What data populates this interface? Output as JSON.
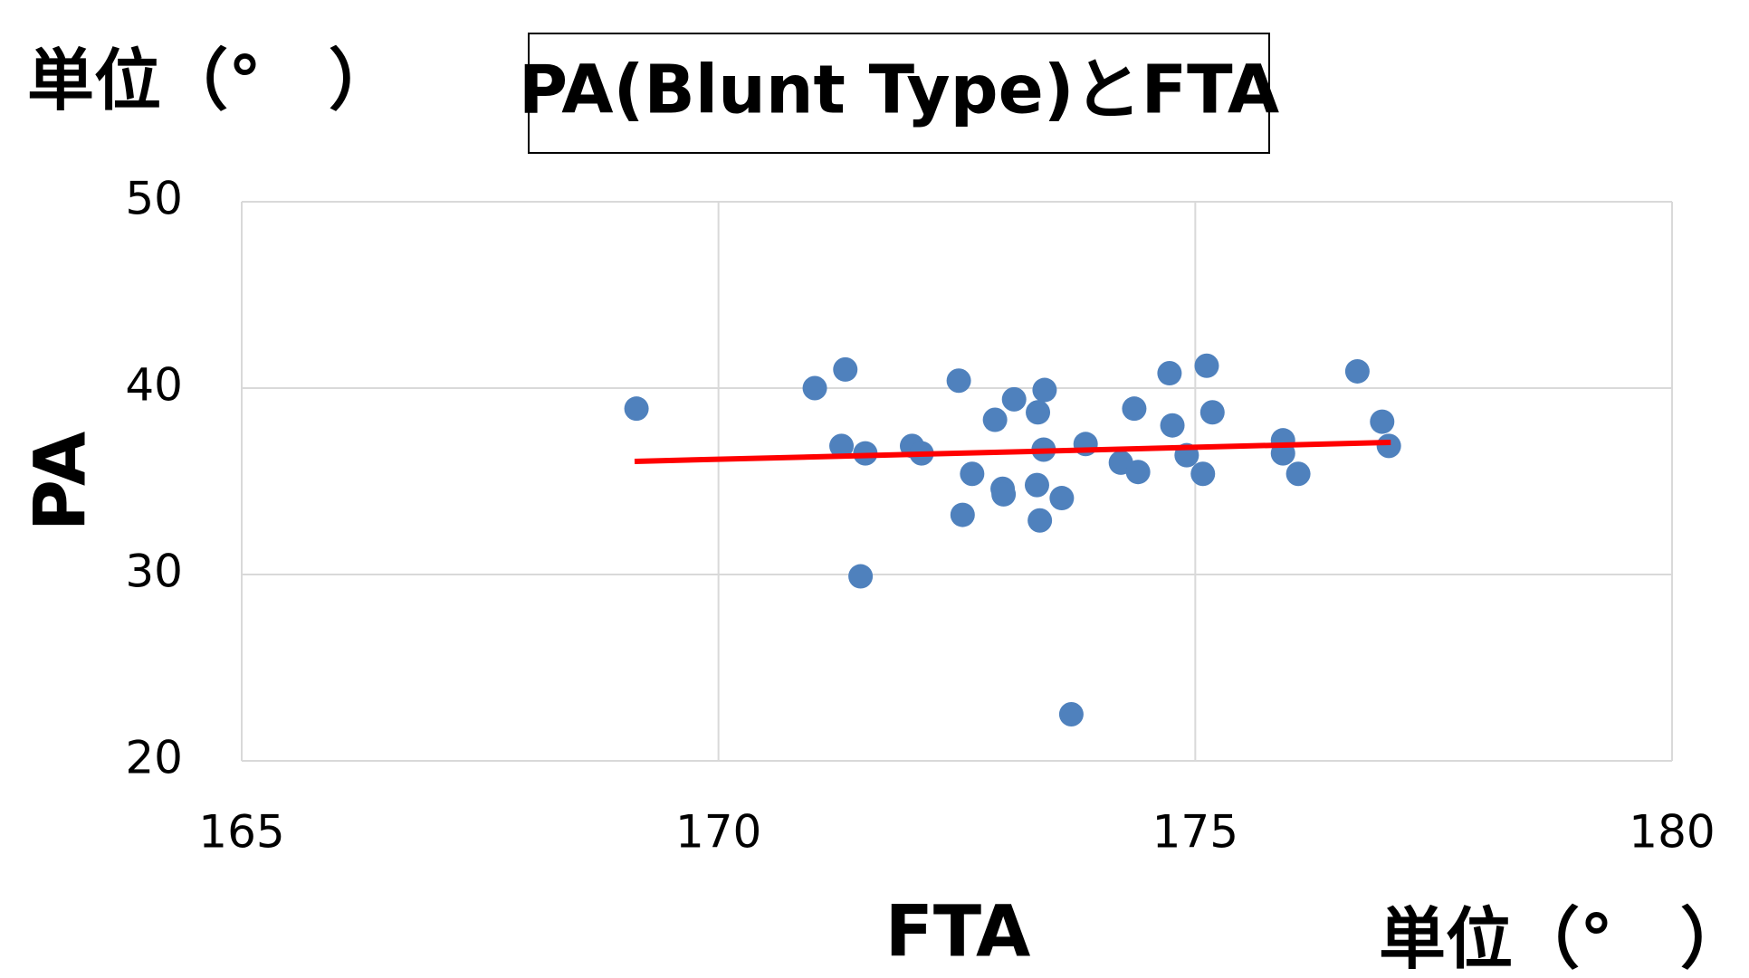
{
  "chart_data": {
    "type": "scatter",
    "title": "PA(Blunt Type)とFTA",
    "y_unit": "単位（°　）",
    "x_unit": "単位（°　）",
    "x_label": "FTA",
    "y_label": "PA",
    "xlim": [
      165,
      180
    ],
    "xticks": [
      165,
      170,
      175,
      180
    ],
    "ylim": [
      20,
      50
    ],
    "yticks": [
      20,
      30,
      40,
      50
    ],
    "grid": true,
    "series": [
      {
        "color": "#4f81bd",
        "x": [
          169.14,
          171.01,
          171.33,
          171.29,
          171.54,
          171.49,
          172.03,
          172.13,
          172.52,
          172.56,
          172.66,
          172.9,
          172.98,
          172.99,
          173.1,
          173.34,
          173.35,
          173.37,
          173.41,
          173.42,
          173.6,
          173.7,
          173.85,
          174.22,
          174.36,
          174.4,
          174.73,
          174.76,
          174.91,
          175.08,
          175.12,
          175.18,
          175.92,
          175.92,
          176.08,
          176.7,
          176.96,
          177.03
        ],
        "values": [
          38.9,
          40.0,
          41.0,
          36.9,
          36.5,
          29.9,
          36.9,
          36.5,
          40.4,
          33.2,
          35.4,
          38.3,
          34.6,
          34.3,
          39.4,
          34.8,
          38.7,
          32.9,
          36.7,
          39.9,
          34.1,
          22.5,
          37.0,
          36.0,
          38.9,
          35.5,
          40.8,
          38.0,
          36.4,
          35.4,
          41.2,
          38.7,
          37.2,
          36.5,
          35.4,
          40.9,
          38.2,
          36.9
        ]
      }
    ],
    "trendline": {
      "color": "#ff0000",
      "x": [
        169.12,
        177.05
      ],
      "values": [
        36.07,
        37.09
      ]
    }
  }
}
